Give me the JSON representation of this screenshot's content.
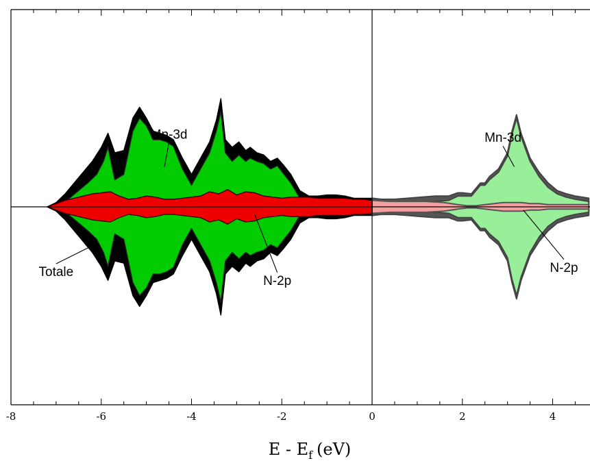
{
  "chart_data": {
    "type": "area",
    "title": "",
    "xlabel": "E - E",
    "xlabel_subscript": "f",
    "xlabel_unit": "(eV)",
    "xlim": [
      -8,
      4.8
    ],
    "ylim": [
      -1,
      1
    ],
    "xticks": [
      -8,
      -6,
      -4,
      -2,
      0,
      2,
      4
    ],
    "xtick_labels": [
      "-8",
      "-6",
      "-4",
      "-2",
      "0",
      "2",
      "4"
    ],
    "fermi_level": 0,
    "colors": {
      "total": "#000000",
      "mn3d": "#00cc00",
      "n2p": "#ee0000",
      "total_light": "#555555",
      "mn3d_light": "#99ee99",
      "n2p_light": "#f4a0a0"
    },
    "series": [
      {
        "key": "total",
        "x": [
          -7.2,
          -7.0,
          -6.8,
          -6.6,
          -6.4,
          -6.2,
          -6.0,
          -5.85,
          -5.7,
          -5.5,
          -5.3,
          -5.15,
          -5.0,
          -4.85,
          -4.7,
          -4.55,
          -4.4,
          -4.2,
          -4.0,
          -3.8,
          -3.6,
          -3.45,
          -3.35,
          -3.25,
          -3.1,
          -2.95,
          -2.8,
          -2.7,
          -2.55,
          -2.4,
          -2.25,
          -2.1,
          -1.95,
          -1.8,
          -1.6,
          -1.4,
          -1.2,
          -1.0,
          -0.8,
          -0.6,
          -0.4,
          -0.2,
          0.0,
          0.2,
          0.5,
          0.8,
          1.1,
          1.4,
          1.7,
          1.9,
          2.0,
          2.2,
          2.4,
          2.5,
          2.6,
          2.8,
          3.0,
          3.1,
          3.2,
          3.3,
          3.5,
          3.7,
          3.9,
          4.1,
          4.3,
          4.5,
          4.8
        ],
        "y": [
          0.0,
          0.04,
          0.12,
          0.22,
          0.32,
          0.42,
          0.55,
          0.68,
          0.5,
          0.52,
          0.82,
          0.92,
          0.82,
          0.7,
          0.68,
          0.66,
          0.62,
          0.45,
          0.3,
          0.45,
          0.6,
          0.8,
          1.0,
          0.62,
          0.55,
          0.6,
          0.52,
          0.55,
          0.5,
          0.48,
          0.42,
          0.45,
          0.38,
          0.3,
          0.15,
          0.1,
          0.1,
          0.11,
          0.11,
          0.1,
          0.08,
          0.08,
          0.08,
          0.07,
          0.07,
          0.08,
          0.09,
          0.1,
          0.1,
          0.13,
          0.13,
          0.12,
          0.22,
          0.22,
          0.28,
          0.35,
          0.5,
          0.7,
          0.85,
          0.68,
          0.45,
          0.32,
          0.22,
          0.15,
          0.12,
          0.1,
          0.08
        ]
      },
      {
        "key": "mn3d",
        "x": [
          -6.9,
          -6.7,
          -6.5,
          -6.3,
          -6.1,
          -5.95,
          -5.85,
          -5.7,
          -5.5,
          -5.3,
          -5.15,
          -5.0,
          -4.85,
          -4.7,
          -4.55,
          -4.4,
          -4.2,
          -4.0,
          -3.8,
          -3.6,
          -3.45,
          -3.35,
          -3.25,
          -3.1,
          -2.95,
          -2.8,
          -2.7,
          -2.55,
          -2.4,
          -2.25,
          -2.1,
          -1.95,
          -1.8,
          -1.6,
          -1.4,
          -1.2,
          -1.0,
          -0.8,
          -0.6,
          -0.4,
          -0.2,
          0.0,
          0.2,
          0.5,
          0.8,
          1.1,
          1.4,
          1.7,
          1.9,
          2.0,
          2.2,
          2.4,
          2.5,
          2.6,
          2.8,
          3.0,
          3.1,
          3.2,
          3.3,
          3.5,
          3.7,
          3.9,
          4.1,
          4.3,
          4.5,
          4.8
        ],
        "y": [
          0.02,
          0.08,
          0.15,
          0.22,
          0.3,
          0.42,
          0.55,
          0.25,
          0.3,
          0.7,
          0.82,
          0.75,
          0.62,
          0.62,
          0.6,
          0.56,
          0.35,
          0.2,
          0.35,
          0.5,
          0.7,
          0.88,
          0.5,
          0.42,
          0.48,
          0.42,
          0.45,
          0.42,
          0.4,
          0.35,
          0.38,
          0.3,
          0.22,
          0.08,
          0.05,
          0.05,
          0.06,
          0.06,
          0.05,
          0.04,
          0.04,
          0.04,
          0.03,
          0.03,
          0.04,
          0.05,
          0.05,
          0.06,
          0.1,
          0.1,
          0.1,
          0.2,
          0.2,
          0.25,
          0.32,
          0.47,
          0.67,
          0.82,
          0.65,
          0.42,
          0.28,
          0.18,
          0.12,
          0.09,
          0.07,
          0.05
        ]
      },
      {
        "key": "n2p",
        "x": [
          -7.2,
          -7.0,
          -6.8,
          -6.6,
          -6.4,
          -6.2,
          -6.0,
          -5.8,
          -5.6,
          -5.4,
          -5.2,
          -5.0,
          -4.8,
          -4.6,
          -4.4,
          -4.2,
          -4.0,
          -3.8,
          -3.6,
          -3.4,
          -3.2,
          -3.0,
          -2.8,
          -2.6,
          -2.4,
          -2.2,
          -2.0,
          -1.8,
          -1.6,
          -1.4,
          -1.2,
          -1.0,
          -0.8,
          -0.6,
          -0.4,
          -0.2,
          0.0,
          0.4,
          0.8,
          1.2,
          1.6,
          1.9,
          2.1,
          2.3,
          2.5,
          2.7,
          2.9,
          3.1,
          3.3,
          3.5,
          3.7,
          3.9,
          4.1,
          4.3,
          4.5,
          4.8
        ],
        "y": [
          0.0,
          0.03,
          0.06,
          0.08,
          0.1,
          0.12,
          0.13,
          0.14,
          0.1,
          0.07,
          0.08,
          0.1,
          0.09,
          0.07,
          0.07,
          0.08,
          0.09,
          0.1,
          0.14,
          0.12,
          0.16,
          0.11,
          0.14,
          0.13,
          0.1,
          0.09,
          0.08,
          0.09,
          0.09,
          0.09,
          0.08,
          0.08,
          0.08,
          0.08,
          0.07,
          0.07,
          0.06,
          0.05,
          0.05,
          0.05,
          0.04,
          0.02,
          0.01,
          0.01,
          0.02,
          0.03,
          0.04,
          0.04,
          0.04,
          0.03,
          0.03,
          0.02,
          0.02,
          0.02,
          0.02,
          0.02
        ]
      }
    ],
    "annotations": [
      {
        "key": "mn3d-left",
        "text": "Mn-3d",
        "label_x": -4.5,
        "label_y": 0.63,
        "point_x": -4.6,
        "point_y": 0.37
      },
      {
        "key": "mn3d-right",
        "text": "Mn-3d",
        "label_x": 2.9,
        "label_y": 0.6,
        "point_x": 3.15,
        "point_y": 0.37
      },
      {
        "key": "totale",
        "text": "Totale",
        "label_x": -7.0,
        "label_y": -0.64,
        "point_x": -6.25,
        "point_y": -0.37
      },
      {
        "key": "n2p-left",
        "text": "N-2p",
        "label_x": -2.1,
        "label_y": -0.72,
        "point_x": -2.6,
        "point_y": -0.07
      },
      {
        "key": "n2p-right",
        "text": "N-2p",
        "label_x": 4.25,
        "label_y": -0.6,
        "point_x": 3.35,
        "point_y": -0.03
      }
    ]
  }
}
